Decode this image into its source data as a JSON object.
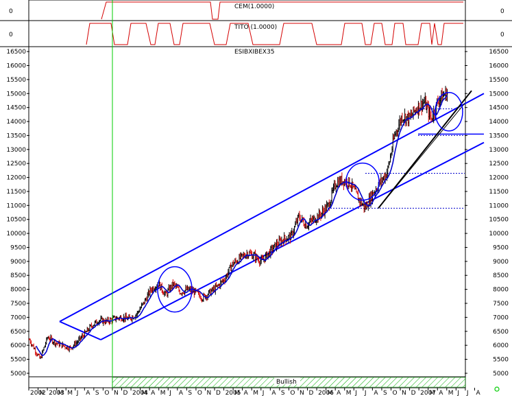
{
  "chart_data": {
    "type": "candlestick",
    "panels": [
      {
        "id": "cem",
        "label": "CEM(1.0000)",
        "tick_left": "0",
        "tick_right": "0",
        "series_color": "#d40000",
        "steps": [
          {
            "x": 0.108,
            "level": "low"
          },
          {
            "x": 0.122,
            "level": "high"
          },
          {
            "x": 0.45,
            "level": "low"
          },
          {
            "x": 0.47,
            "level": "high"
          },
          {
            "x": 1.0,
            "level": "high"
          }
        ]
      },
      {
        "id": "tito",
        "label": "TITO (1.0000)",
        "tick_left": "0",
        "tick_right": "0",
        "series_color": "#d40000"
      }
    ],
    "main": {
      "title": "ESIBXIBEX35",
      "ylim": [
        4900,
        16650
      ],
      "yticks": [
        5000,
        5500,
        6000,
        6500,
        7000,
        7500,
        8000,
        8500,
        9000,
        9500,
        10000,
        10500,
        11000,
        11500,
        12000,
        12500,
        13000,
        13500,
        14000,
        14500,
        15000,
        15500,
        16000,
        16500
      ],
      "ytick_labels": [
        "5000",
        "5500",
        "6000",
        "6500",
        "7000",
        "7500",
        "8000",
        "8500",
        "9000",
        "9500",
        "10000",
        "10500",
        "11000",
        "11500",
        "12000",
        "12500",
        "13000",
        "13500",
        "14000",
        "14500",
        "15000",
        "15500",
        "16000",
        "16500"
      ],
      "x_start": "2002-09-01",
      "x_end": "2007-07-31",
      "x_labels": [
        "2002",
        "N",
        "2003",
        "M",
        "M",
        "J",
        "A",
        "S",
        "O",
        "N",
        "D",
        "2004",
        "M",
        "A",
        "M",
        "J",
        "A",
        "S",
        "O",
        "N",
        "D",
        "2005",
        "M",
        "A",
        "M",
        "J",
        "A",
        "S",
        "O",
        "N",
        "D",
        "2006",
        "M",
        "A",
        "M",
        "J",
        "J",
        "A",
        "S",
        "O",
        "N",
        "D",
        "2007",
        "M",
        "A",
        "M",
        "J",
        "J",
        "A"
      ],
      "close_series": [
        {
          "date": "2002-09-01",
          "v": 6200
        },
        {
          "date": "2002-10-15",
          "v": 5500
        },
        {
          "date": "2002-11-15",
          "v": 6300
        },
        {
          "date": "2002-12-15",
          "v": 6100
        },
        {
          "date": "2003-01-15",
          "v": 6000
        },
        {
          "date": "2003-02-15",
          "v": 5900
        },
        {
          "date": "2003-03-15",
          "v": 6100
        },
        {
          "date": "2003-04-15",
          "v": 6400
        },
        {
          "date": "2003-05-15",
          "v": 6700
        },
        {
          "date": "2003-06-15",
          "v": 6900
        },
        {
          "date": "2003-07-15",
          "v": 6850
        },
        {
          "date": "2003-08-15",
          "v": 6950
        },
        {
          "date": "2003-09-15",
          "v": 7000
        },
        {
          "date": "2003-10-15",
          "v": 6950
        },
        {
          "date": "2003-11-15",
          "v": 7100
        },
        {
          "date": "2003-12-15",
          "v": 7500
        },
        {
          "date": "2004-01-15",
          "v": 8000
        },
        {
          "date": "2004-02-15",
          "v": 8200
        },
        {
          "date": "2004-03-15",
          "v": 7800
        },
        {
          "date": "2004-04-15",
          "v": 8200
        },
        {
          "date": "2004-05-15",
          "v": 7900
        },
        {
          "date": "2004-06-15",
          "v": 8000
        },
        {
          "date": "2004-07-15",
          "v": 7900
        },
        {
          "date": "2004-08-15",
          "v": 7700
        },
        {
          "date": "2004-09-15",
          "v": 7900
        },
        {
          "date": "2004-10-15",
          "v": 8100
        },
        {
          "date": "2004-11-15",
          "v": 8400
        },
        {
          "date": "2004-12-15",
          "v": 8900
        },
        {
          "date": "2005-01-15",
          "v": 9100
        },
        {
          "date": "2005-02-15",
          "v": 9300
        },
        {
          "date": "2005-03-15",
          "v": 9200
        },
        {
          "date": "2005-04-15",
          "v": 9000
        },
        {
          "date": "2005-05-15",
          "v": 9300
        },
        {
          "date": "2005-06-15",
          "v": 9600
        },
        {
          "date": "2005-07-15",
          "v": 9800
        },
        {
          "date": "2005-08-15",
          "v": 9900
        },
        {
          "date": "2005-09-15",
          "v": 10600
        },
        {
          "date": "2005-10-15",
          "v": 10300
        },
        {
          "date": "2005-11-15",
          "v": 10500
        },
        {
          "date": "2005-12-15",
          "v": 10700
        },
        {
          "date": "2006-01-15",
          "v": 11000
        },
        {
          "date": "2006-02-15",
          "v": 11800
        },
        {
          "date": "2006-03-15",
          "v": 11900
        },
        {
          "date": "2006-04-15",
          "v": 11800
        },
        {
          "date": "2006-05-15",
          "v": 11300
        },
        {
          "date": "2006-06-15",
          "v": 10900
        },
        {
          "date": "2006-07-15",
          "v": 11400
        },
        {
          "date": "2006-08-15",
          "v": 11800
        },
        {
          "date": "2006-09-15",
          "v": 12200
        },
        {
          "date": "2006-10-15",
          "v": 13500
        },
        {
          "date": "2006-11-15",
          "v": 14200
        },
        {
          "date": "2006-12-15",
          "v": 14100
        },
        {
          "date": "2007-01-15",
          "v": 14500
        },
        {
          "date": "2007-02-15",
          "v": 14700
        },
        {
          "date": "2007-03-15",
          "v": 14100
        },
        {
          "date": "2007-04-15",
          "v": 14800
        },
        {
          "date": "2007-05-15",
          "v": 15000
        }
      ],
      "up_color": "#000000",
      "down_color": "#d40000",
      "ma_color": "#0000cc",
      "annotation_color": "#0000ff",
      "trend_color": "#000000",
      "signal_line_color": "#00cc00",
      "signal_label": "Bullish",
      "circle_color": "#0000ff",
      "hlines": [
        14450,
        13500,
        12150,
        10900
      ]
    }
  }
}
